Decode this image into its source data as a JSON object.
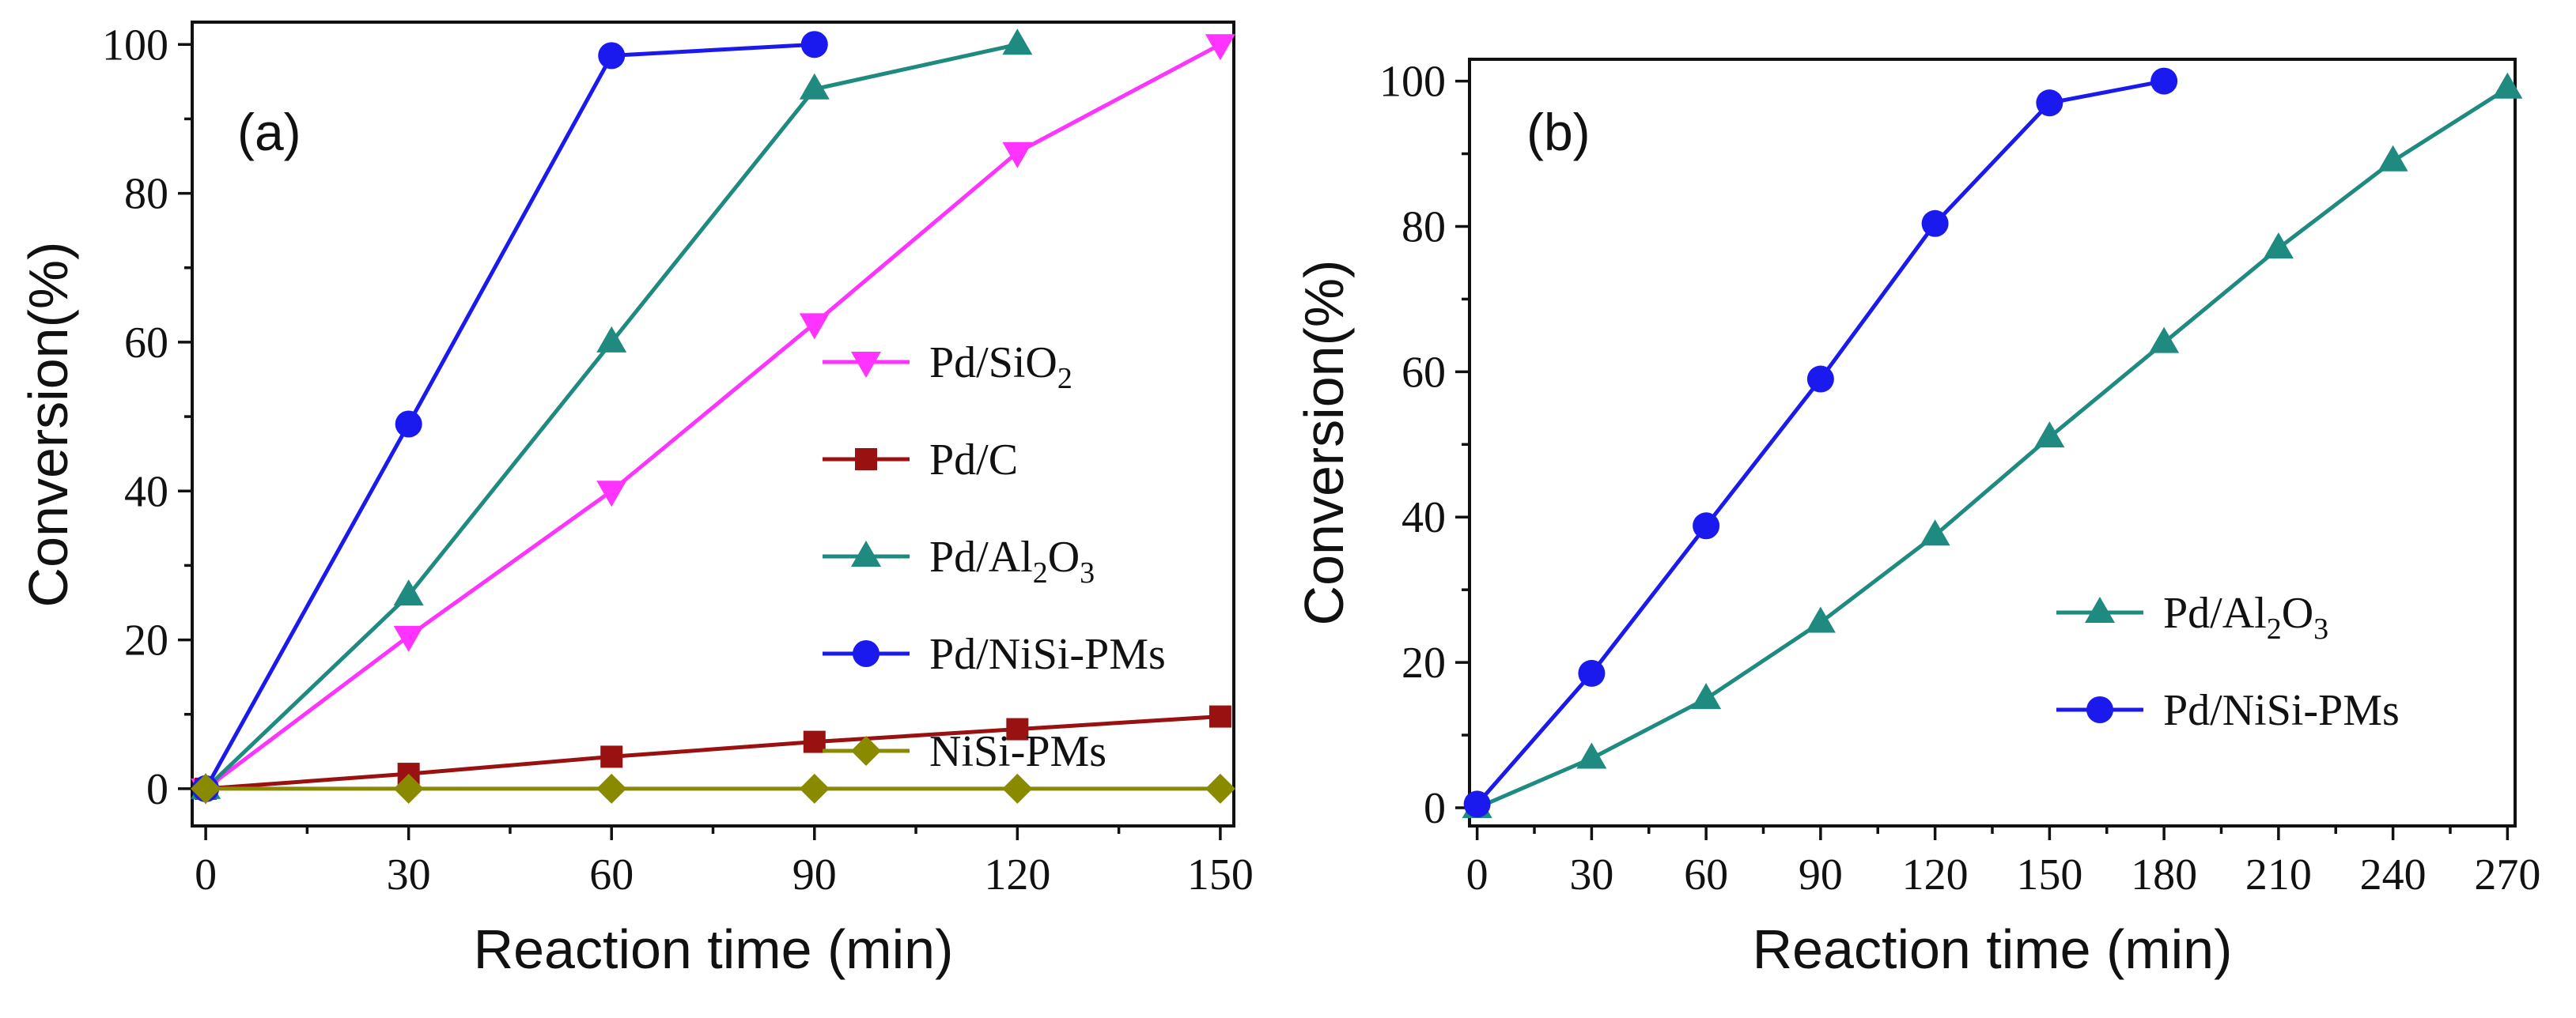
{
  "chart_data": [
    {
      "type": "line",
      "panel_label": "(a)",
      "xlabel": "Reaction time (min)",
      "ylabel": "Conversion(%)",
      "xlim": [
        -2,
        152
      ],
      "ylim": [
        -5,
        103
      ],
      "xticks": [
        0,
        30,
        60,
        90,
        120,
        150
      ],
      "yticks": [
        0,
        20,
        40,
        60,
        80,
        100
      ],
      "x_minor_step": 15,
      "y_minor_step": 10,
      "legend_position": "center-right",
      "series": [
        {
          "name": "Pd/SiO2",
          "label_main": "Pd/SiO",
          "label_sub": "2",
          "label_tail": "",
          "color": "#ff33ff",
          "marker": "triangle-down",
          "x": [
            0,
            30,
            60,
            90,
            120,
            150
          ],
          "values": [
            0,
            20.5,
            40,
            62.5,
            85.5,
            100
          ]
        },
        {
          "name": "Pd/C",
          "label_main": "Pd/C",
          "label_sub": "",
          "label_tail": "",
          "color": "#991111",
          "marker": "square",
          "x": [
            0,
            30,
            60,
            90,
            120,
            150
          ],
          "values": [
            0,
            2,
            4.3,
            6.3,
            8,
            9.7
          ]
        },
        {
          "name": "Pd/Al2O3",
          "label_main": "Pd/Al",
          "label_sub": "2",
          "label_tail": "O",
          "label_sub2": "3",
          "color": "#1e8a80",
          "marker": "triangle-up",
          "x": [
            0,
            30,
            60,
            90,
            120
          ],
          "values": [
            0,
            26,
            60,
            94,
            100
          ]
        },
        {
          "name": "Pd/NiSi-PMs",
          "label_main": "Pd/NiSi-PMs",
          "label_sub": "",
          "label_tail": "",
          "color": "#1a1aee",
          "marker": "circle",
          "x": [
            0,
            30,
            60,
            90
          ],
          "values": [
            0,
            49,
            98.5,
            100
          ]
        },
        {
          "name": "NiSi-PMs",
          "label_main": "NiSi-PMs",
          "label_sub": "",
          "label_tail": "",
          "color": "#8a8a00",
          "marker": "diamond",
          "x": [
            0,
            30,
            60,
            90,
            120,
            150
          ],
          "values": [
            0,
            0,
            0,
            0,
            0,
            0
          ]
        }
      ]
    },
    {
      "type": "line",
      "panel_label": "(b)",
      "xlabel": "Reaction time (min)",
      "ylabel": "Conversion(%)",
      "xlim": [
        -2,
        272
      ],
      "ylim": [
        -2.5,
        103
      ],
      "xticks": [
        0,
        30,
        60,
        90,
        120,
        150,
        180,
        210,
        240,
        270
      ],
      "yticks": [
        0,
        20,
        40,
        60,
        80,
        100
      ],
      "x_minor_step": 15,
      "y_minor_step": 10,
      "legend_position": "lower-right",
      "series": [
        {
          "name": "Pd/Al2O3",
          "label_main": "Pd/Al",
          "label_sub": "2",
          "label_tail": "O",
          "label_sub2": "3",
          "color": "#1e8a80",
          "marker": "triangle-up",
          "x": [
            0,
            30,
            60,
            90,
            120,
            150,
            180,
            210,
            240,
            270
          ],
          "values": [
            0,
            6.8,
            15,
            25.5,
            37.5,
            51,
            64,
            77,
            89,
            99
          ]
        },
        {
          "name": "Pd/NiSi-PMs",
          "label_main": "Pd/NiSi-PMs",
          "label_sub": "",
          "label_tail": "",
          "color": "#1a1aee",
          "marker": "circle",
          "x": [
            0,
            30,
            60,
            90,
            120,
            150,
            180
          ],
          "values": [
            0.5,
            18.5,
            38.8,
            59,
            80.4,
            97,
            100
          ]
        }
      ]
    }
  ]
}
